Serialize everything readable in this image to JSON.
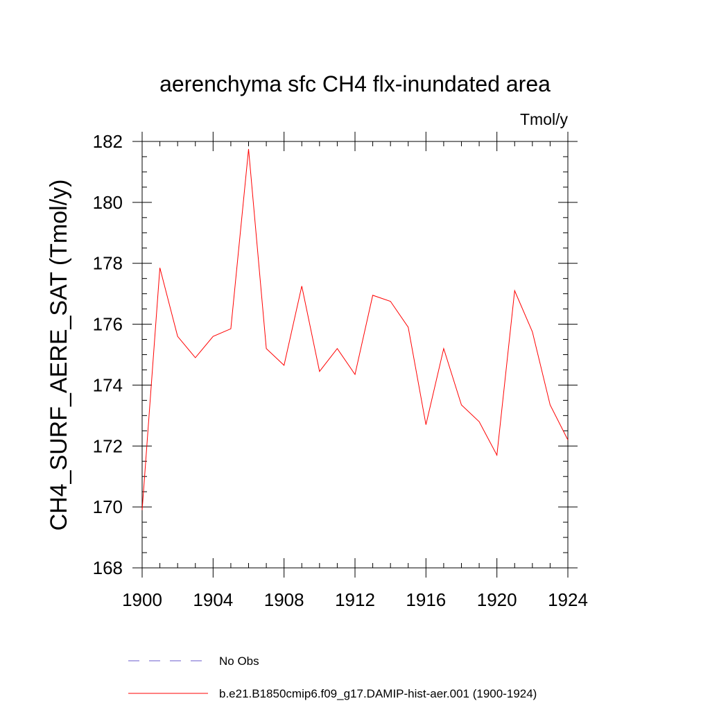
{
  "chart_data": {
    "type": "line",
    "title": "aerenchyma sfc CH4 flx-inundated area",
    "units": "Tmol/y",
    "ylabel": "CH4_SURF_AERE_SAT  (Tmol/y)",
    "xlabel": "",
    "xlim": [
      1900,
      1924
    ],
    "ylim": [
      168,
      182
    ],
    "x_ticks": [
      1900,
      1904,
      1908,
      1912,
      1916,
      1920,
      1924
    ],
    "y_ticks": [
      168,
      170,
      172,
      174,
      176,
      178,
      180,
      182
    ],
    "grid": false,
    "legend_position": "bottom-left",
    "legend": [
      {
        "name": "No Obs",
        "color": "#6a5acd",
        "style": "dashed"
      },
      {
        "name": "b.e21.B1850cmip6.f09_g17.DAMIP-hist-aer.001 (1900-1924)",
        "color": "#ff0000",
        "style": "solid"
      }
    ],
    "series": [
      {
        "name": "b.e21.B1850cmip6.f09_g17.DAMIP-hist-aer.001 (1900-1924)",
        "color": "#ff0000",
        "x": [
          1900,
          1901,
          1902,
          1903,
          1904,
          1905,
          1906,
          1907,
          1908,
          1909,
          1910,
          1911,
          1912,
          1913,
          1914,
          1915,
          1916,
          1917,
          1918,
          1919,
          1920,
          1921,
          1922,
          1923,
          1924
        ],
        "values": [
          169.9,
          177.85,
          175.6,
          174.9,
          175.6,
          175.85,
          181.75,
          175.2,
          174.65,
          177.25,
          174.45,
          175.2,
          174.35,
          176.95,
          176.75,
          175.9,
          172.7,
          175.2,
          173.35,
          172.8,
          171.7,
          177.1,
          175.75,
          173.35,
          172.2
        ]
      }
    ]
  }
}
